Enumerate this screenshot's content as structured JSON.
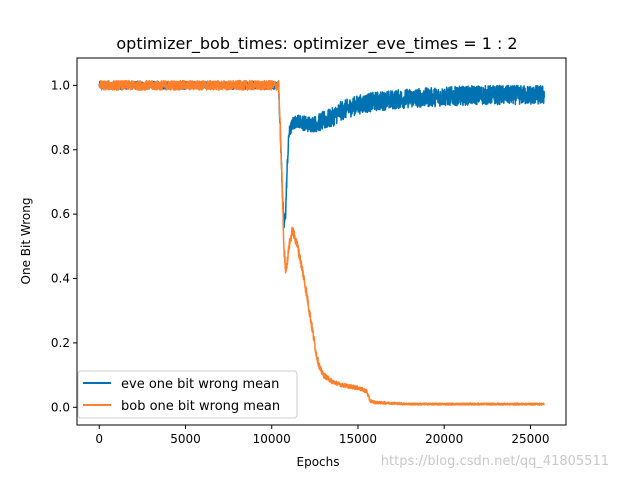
{
  "chart_data": {
    "type": "line",
    "title": "optimizer_bob_times: optimizer_eve_times = 1 : 2",
    "xlabel": "Epochs",
    "ylabel": "One Bit Wrong",
    "xlim": [
      -1290,
      27060
    ],
    "ylim": [
      -0.055,
      1.085
    ],
    "xticks": [
      0,
      5000,
      10000,
      15000,
      20000,
      25000
    ],
    "xtick_labels": [
      "0",
      "5000",
      "10000",
      "15000",
      "20000",
      "25000"
    ],
    "yticks": [
      0.0,
      0.2,
      0.4,
      0.6,
      0.8,
      1.0
    ],
    "ytick_labels": [
      "0.0",
      "0.2",
      "0.4",
      "0.6",
      "0.8",
      "1.0"
    ],
    "grid": false,
    "legend_position": "lower-left",
    "series": [
      {
        "name": "eve one bit wrong mean",
        "color": "#0072b2",
        "x": [
          0,
          2000,
          4000,
          6000,
          8000,
          10000,
          10400,
          10500,
          10600,
          10700,
          10800,
          10900,
          11000,
          11200,
          11500,
          12000,
          12500,
          13000,
          13500,
          14000,
          15000,
          16000,
          17000,
          18000,
          20000,
          22000,
          24000,
          25000,
          25800
        ],
        "values": [
          1.0,
          1.0,
          1.0,
          1.0,
          1.0,
          1.0,
          1.0,
          0.85,
          0.7,
          0.56,
          0.6,
          0.75,
          0.85,
          0.88,
          0.89,
          0.88,
          0.88,
          0.89,
          0.9,
          0.92,
          0.94,
          0.95,
          0.955,
          0.96,
          0.965,
          0.97,
          0.97,
          0.97,
          0.97
        ],
        "noise": [
          0.012,
          0.012,
          0.012,
          0.012,
          0.012,
          0.012,
          0.012,
          0.02,
          0.02,
          0.02,
          0.02,
          0.02,
          0.02,
          0.02,
          0.02,
          0.025,
          0.025,
          0.03,
          0.03,
          0.03,
          0.03,
          0.03,
          0.03,
          0.03,
          0.03,
          0.03,
          0.03,
          0.03,
          0.03
        ]
      },
      {
        "name": "bob one bit wrong mean",
        "color": "#ff7f2a",
        "x": [
          0,
          2000,
          4000,
          6000,
          8000,
          10000,
          10400,
          10500,
          10600,
          10700,
          10800,
          10900,
          11000,
          11200,
          11500,
          11800,
          12000,
          12300,
          12600,
          12800,
          13000,
          13500,
          14000,
          15000,
          15500,
          15700,
          16000,
          18000,
          20000,
          22000,
          24000,
          25800
        ],
        "values": [
          1.0,
          1.0,
          1.0,
          1.0,
          1.0,
          1.0,
          1.0,
          0.85,
          0.7,
          0.5,
          0.43,
          0.45,
          0.5,
          0.55,
          0.5,
          0.42,
          0.36,
          0.26,
          0.16,
          0.12,
          0.1,
          0.08,
          0.07,
          0.06,
          0.05,
          0.02,
          0.015,
          0.01,
          0.01,
          0.01,
          0.01,
          0.01
        ],
        "noise": [
          0.015,
          0.015,
          0.015,
          0.015,
          0.015,
          0.015,
          0.015,
          0.02,
          0.02,
          0.02,
          0.015,
          0.015,
          0.015,
          0.015,
          0.015,
          0.015,
          0.015,
          0.015,
          0.012,
          0.01,
          0.008,
          0.007,
          0.006,
          0.006,
          0.006,
          0.005,
          0.004,
          0.003,
          0.003,
          0.003,
          0.003,
          0.003
        ]
      }
    ]
  },
  "watermark": "https://blog.csdn.net/qq_41805511"
}
